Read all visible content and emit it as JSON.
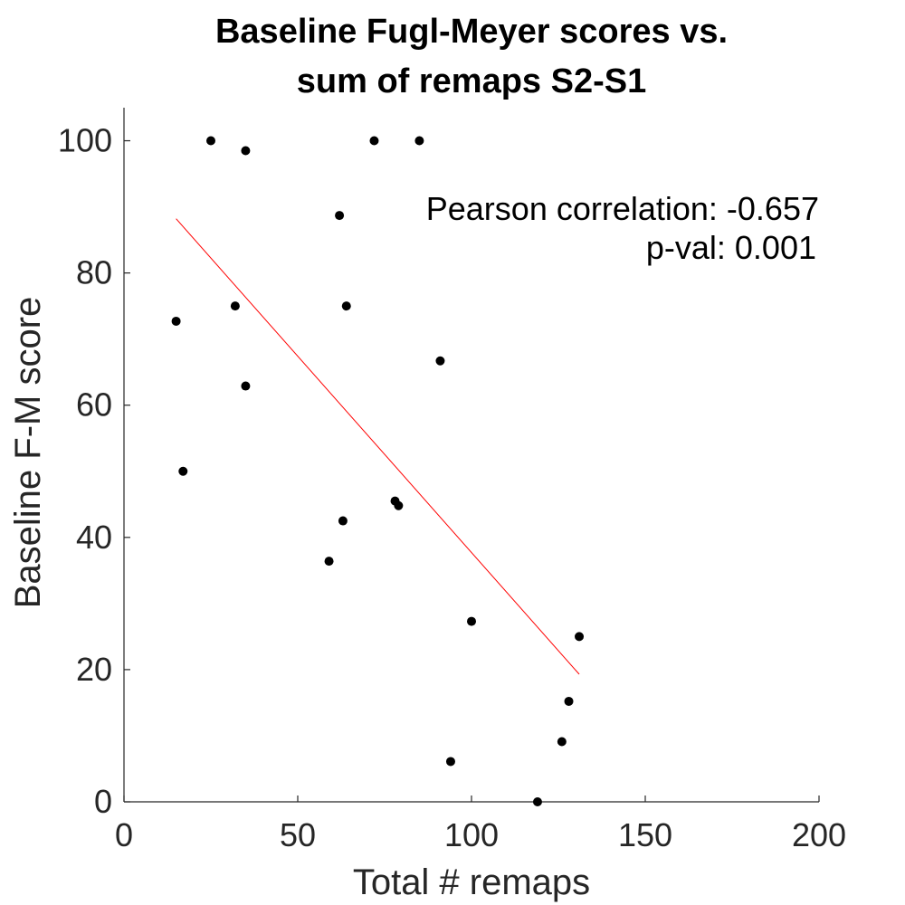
{
  "chart_data": {
    "type": "scatter",
    "title": [
      "Baseline Fugl-Meyer scores vs.",
      "sum of remaps S2-S1"
    ],
    "xlabel": "Total # remaps",
    "ylabel": "Baseline F-M score",
    "xlim": [
      0,
      200
    ],
    "ylim": [
      0,
      105
    ],
    "xticks": [
      0,
      50,
      100,
      150,
      200
    ],
    "yticks": [
      0,
      20,
      40,
      60,
      80,
      100
    ],
    "grid": false,
    "series": [
      {
        "marker_color": "#000000",
        "points": [
          {
            "x": 25,
            "y": 100
          },
          {
            "x": 35,
            "y": 98.5
          },
          {
            "x": 72,
            "y": 100
          },
          {
            "x": 85,
            "y": 100
          },
          {
            "x": 62,
            "y": 88.7
          },
          {
            "x": 15,
            "y": 72.7
          },
          {
            "x": 32,
            "y": 75
          },
          {
            "x": 64,
            "y": 75
          },
          {
            "x": 91,
            "y": 66.7
          },
          {
            "x": 35,
            "y": 62.9
          },
          {
            "x": 17,
            "y": 50
          },
          {
            "x": 78,
            "y": 45.5
          },
          {
            "x": 79,
            "y": 44.8
          },
          {
            "x": 63,
            "y": 42.5
          },
          {
            "x": 59,
            "y": 36.4
          },
          {
            "x": 100,
            "y": 27.3
          },
          {
            "x": 131,
            "y": 25
          },
          {
            "x": 128,
            "y": 15.2
          },
          {
            "x": 126,
            "y": 9.1
          },
          {
            "x": 94,
            "y": 6.1
          },
          {
            "x": 119,
            "y": 0
          }
        ]
      }
    ],
    "fit_line": {
      "color": "#ff0000",
      "x": [
        15,
        131
      ],
      "y": [
        88.2,
        19.3
      ]
    },
    "annotations": [
      "Pearson correlation: -0.657",
      "p-val: 0.001"
    ]
  }
}
